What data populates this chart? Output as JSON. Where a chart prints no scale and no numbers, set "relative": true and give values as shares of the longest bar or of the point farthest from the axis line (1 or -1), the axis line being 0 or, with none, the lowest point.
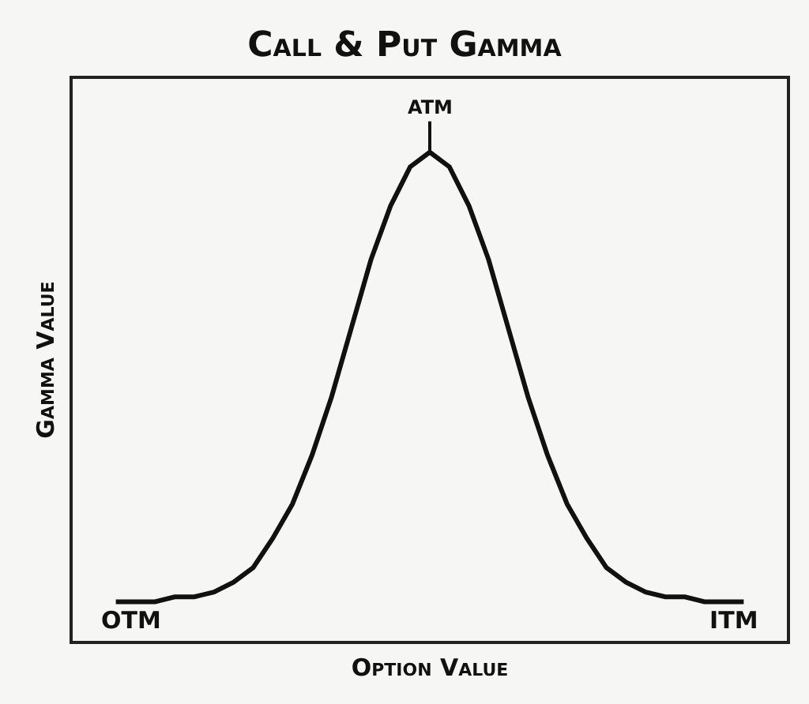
{
  "chart_data": {
    "type": "line",
    "title": "Call & Put Gamma",
    "xlabel": "Option Value",
    "ylabel": "Gamma Value",
    "relative": true,
    "categories": [
      null,
      null,
      null,
      null,
      null,
      null,
      null,
      null,
      null,
      null,
      null,
      null,
      null,
      null,
      null,
      null,
      null,
      null,
      null,
      null,
      null,
      null,
      null,
      null,
      null,
      null,
      null,
      null,
      null,
      null,
      null,
      null,
      null
    ],
    "series": [
      {
        "color": "#111111",
        "values": [
          0.08,
          0.08,
          0.08,
          0.09,
          0.09,
          0.1,
          0.12,
          0.15,
          0.21,
          0.28,
          0.38,
          0.5,
          0.64,
          0.78,
          0.89,
          0.97,
          1,
          0.97,
          0.89,
          0.78,
          0.64,
          0.5,
          0.38,
          0.28,
          0.21,
          0.15,
          0.12,
          0.1,
          0.09,
          0.09,
          0.08,
          0.08,
          0.08
        ]
      }
    ],
    "annotations": [
      {
        "text": "ATM",
        "y": 1
      },
      "OTM",
      "ITM"
    ],
    "marker": "none",
    "line_style": "solid"
  }
}
